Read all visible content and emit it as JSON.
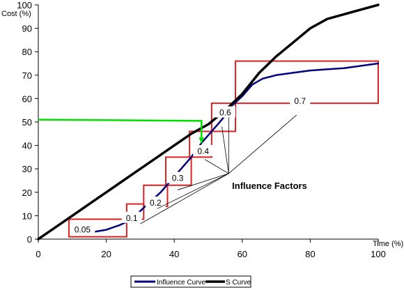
{
  "chart_data": {
    "type": "line",
    "xlabel": "Time (%)",
    "ylabel": "Cost (%)",
    "xlim": [
      0,
      100
    ],
    "ylim": [
      0,
      100
    ],
    "x_ticks": [
      0,
      20,
      40,
      60,
      80,
      100
    ],
    "y_ticks": [
      0,
      10,
      20,
      30,
      40,
      50,
      60,
      70,
      80,
      90,
      100
    ],
    "grid": false,
    "legend_position": "bottom",
    "series": [
      {
        "name": "Influence Curve",
        "color": "#000080",
        "x": [
          16,
          20,
          24,
          27,
          30,
          33,
          36,
          39,
          42,
          45,
          48,
          51,
          54,
          57,
          60,
          63,
          66,
          70,
          75,
          80,
          85,
          90,
          95,
          100
        ],
        "y": [
          3,
          4,
          6,
          8,
          12,
          16,
          20,
          25,
          30,
          35,
          41,
          46,
          51,
          57,
          61,
          66,
          68.5,
          70,
          71,
          72,
          72.5,
          73,
          74,
          75
        ]
      },
      {
        "name": "S Curve",
        "color": "#000000",
        "x": [
          0,
          5,
          10,
          15,
          20,
          25,
          30,
          35,
          40,
          45,
          50,
          55,
          60,
          65,
          70,
          75,
          80,
          85,
          90,
          95,
          100
        ],
        "y": [
          0,
          5,
          10,
          15,
          20,
          25,
          30,
          35,
          40,
          45,
          49,
          55,
          62,
          71,
          78,
          84,
          90,
          94,
          96,
          98,
          100
        ]
      }
    ],
    "boxes": [
      {
        "label": "0.05",
        "x0": 9,
        "x1": 26,
        "y0": 1,
        "y1": 8.5
      },
      {
        "label": "0.1",
        "x0": 26,
        "x1": 31,
        "y0": 8.5,
        "y1": 15
      },
      {
        "label": "0.2",
        "x0": 31,
        "x1": 38,
        "y0": 14,
        "y1": 23
      },
      {
        "label": "0.3",
        "x0": 37.5,
        "x1": 45,
        "y0": 23,
        "y1": 35
      },
      {
        "label": "0.4",
        "x0": 44.5,
        "x1": 51,
        "y0": 35,
        "y1": 46
      },
      {
        "label": "0.6",
        "x0": 51,
        "x1": 58,
        "y0": 46,
        "y1": 58
      },
      {
        "label": "0.7",
        "x0": 58,
        "x1": 100,
        "y0": 58,
        "y1": 76
      }
    ],
    "box_label_positions": [
      {
        "x": 13,
        "y": 4
      },
      {
        "x": 27.5,
        "y": 9
      },
      {
        "x": 34.5,
        "y": 15.5
      },
      {
        "x": 41,
        "y": 26
      },
      {
        "x": 48.5,
        "y": 37.5
      },
      {
        "x": 55,
        "y": 54
      },
      {
        "x": 77,
        "y": 59
      }
    ],
    "reference_line": {
      "color": "#00e000",
      "points": [
        [
          0,
          51
        ],
        [
          48,
          50.5
        ],
        [
          48,
          41
        ]
      ]
    },
    "annotation": {
      "text": "Influence Factors",
      "label_position": {
        "x": 57,
        "y": 21.5
      },
      "anchor": {
        "x": 56,
        "y": 28
      },
      "targets": [
        {
          "x": 30,
          "y": 6.5
        },
        {
          "x": 35,
          "y": 13
        },
        {
          "x": 41,
          "y": 21
        },
        {
          "x": 49,
          "y": 34
        },
        {
          "x": 54,
          "y": 48
        },
        {
          "x": 56,
          "y": 52
        },
        {
          "x": 76,
          "y": 53
        }
      ]
    }
  }
}
